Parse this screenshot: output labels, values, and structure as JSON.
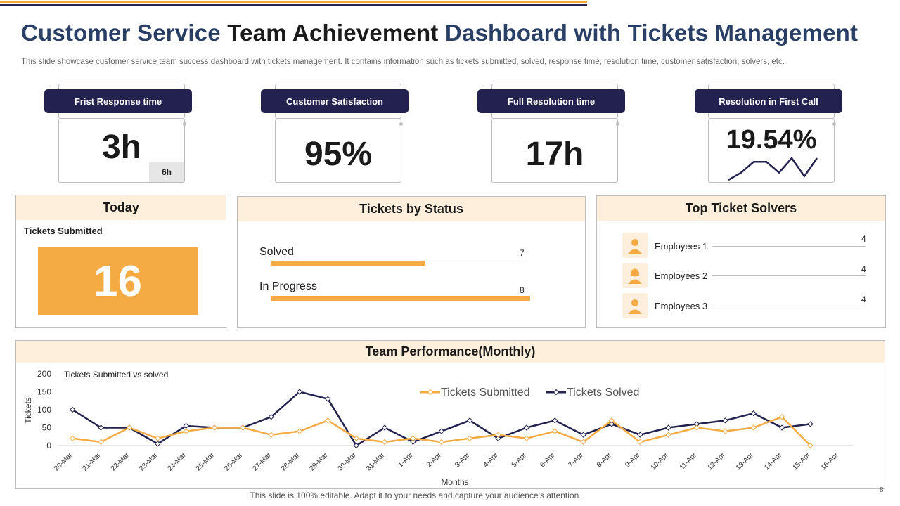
{
  "header": {
    "title_part1": "Customer Service",
    "title_part2": "Team Achievement",
    "title_part3": "Dashboard with Tickets Management",
    "subtitle": "This slide showcase customer service team success dashboard with tickets management. It contains information such as tickets submitted, solved, response time, resolution time, customer satisfaction, solvers, etc."
  },
  "kpis": [
    {
      "label": "Frist Response  time",
      "value": "3h",
      "sub": "6h"
    },
    {
      "label": "Customer  Satisfaction",
      "value": "95%"
    },
    {
      "label": "Full Resolution  time",
      "value": "17h"
    },
    {
      "label": "Resolution in First Call",
      "value": "19.54%",
      "sparkline": [
        2,
        4,
        7,
        7,
        4,
        8,
        3,
        8
      ]
    }
  ],
  "today": {
    "title": "Today",
    "label": "Tickets Submitted",
    "value": "16"
  },
  "status": {
    "title": "Tickets by Status",
    "max": 8,
    "items": [
      {
        "label": "Solved",
        "value": 7
      },
      {
        "label": "In Progress",
        "value": 8
      }
    ]
  },
  "solvers": {
    "title": "Top Ticket Solvers",
    "items": [
      {
        "name": "Employees 1",
        "value": "4"
      },
      {
        "name": "Employees 2",
        "value": "4"
      },
      {
        "name": "Employees 3",
        "value": "4"
      }
    ]
  },
  "performance": {
    "title": "Team Performance(Monthly)"
  },
  "chart_data": {
    "type": "line",
    "title": "Tickets Submitted vs  solved",
    "xlabel": "Months",
    "ylabel": "Tickets",
    "ylim": [
      0,
      200
    ],
    "yticks": [
      0,
      50,
      100,
      150,
      200
    ],
    "legend_position": "top-right",
    "categories": [
      "20-Mar",
      "21-Mar",
      "22-Mar",
      "23-Mar",
      "24-Mar",
      "25-Mar",
      "26-Mar",
      "27-Mar",
      "28-Mar",
      "29-Mar",
      "30-Mar",
      "31-Mar",
      "1-Apr",
      "2-Apr",
      "3-Apr",
      "4-Apr",
      "5-Apr",
      "6-Apr",
      "7-Apr",
      "8-Apr",
      "9-Apr",
      "10-Apr",
      "11-Apr",
      "12-Apr",
      "13-Apr",
      "14-Apr",
      "15-Apr",
      "16-Apr"
    ],
    "series": [
      {
        "name": "Tickets Submitted",
        "color": "#f5ab44",
        "values": [
          20,
          10,
          50,
          20,
          40,
          50,
          50,
          30,
          40,
          70,
          20,
          10,
          20,
          10,
          20,
          30,
          20,
          40,
          10,
          70,
          10,
          30,
          50,
          40,
          50,
          80,
          0,
          null
        ]
      },
      {
        "name": "Tickets Solved",
        "color": "#23224f",
        "values": [
          100,
          50,
          50,
          5,
          55,
          50,
          50,
          80,
          150,
          130,
          0,
          50,
          10,
          40,
          70,
          20,
          50,
          70,
          30,
          60,
          30,
          50,
          60,
          70,
          90,
          50,
          60,
          null
        ]
      }
    ]
  },
  "footer": {
    "text": "This slide is 100% editable. Adapt it to your needs and capture your audience's attention.",
    "page": "8"
  }
}
